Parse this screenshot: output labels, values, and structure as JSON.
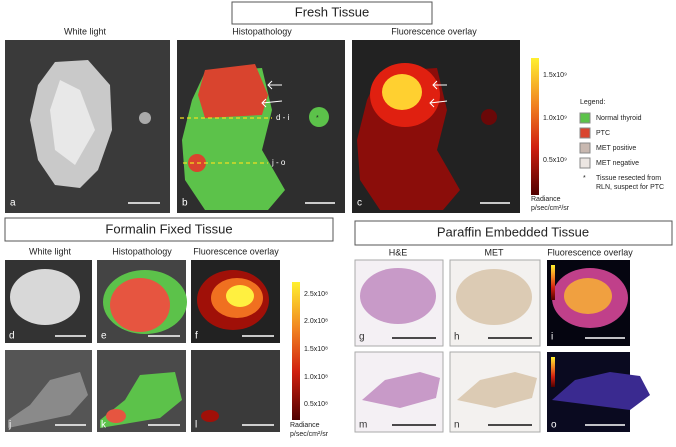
{
  "fresh_tissue": {
    "title": "Fresh Tissue",
    "column_labels": [
      "White light",
      "Histopathology",
      "Fluorescence overlay"
    ],
    "panel_letters": [
      "a",
      "b",
      "c"
    ],
    "annotations": [
      "d - i",
      "j - o"
    ],
    "colorbar": {
      "ticks": [
        "1.5x10⁹",
        "1.0x10⁹",
        "0.5x10⁹"
      ],
      "caption": [
        "Radiance",
        "p/sec/cm²/sr"
      ]
    }
  },
  "legend": {
    "title": "Legend:",
    "items": [
      "Normal thyroid",
      "PTC",
      "MET positive",
      "MET negative"
    ],
    "note_symbol": "*",
    "note": [
      "Tissue resected from",
      "RLN, suspect for PTC"
    ]
  },
  "formalin_fixed_tissue": {
    "title": "Formalin Fixed Tissue",
    "column_labels": [
      "White light",
      "Histopathology",
      "Fluorescence overlay"
    ],
    "panel_letters": [
      "d",
      "e",
      "f",
      "j",
      "k",
      "l"
    ],
    "colorbar": {
      "ticks": [
        "2.5x10⁸",
        "2.0x10⁸",
        "1.5x10⁸",
        "1.0x10⁸",
        "0.5x10⁸"
      ],
      "caption": [
        "Radiance",
        "p/sec/cm²/sr"
      ]
    }
  },
  "paraffin_embedded_tissue": {
    "title": "Paraffin Embedded Tissue",
    "column_labels": [
      "H&E",
      "MET",
      "Fluorescence overlay"
    ],
    "panel_letters": [
      "g",
      "h",
      "i",
      "m",
      "n",
      "o"
    ]
  }
}
